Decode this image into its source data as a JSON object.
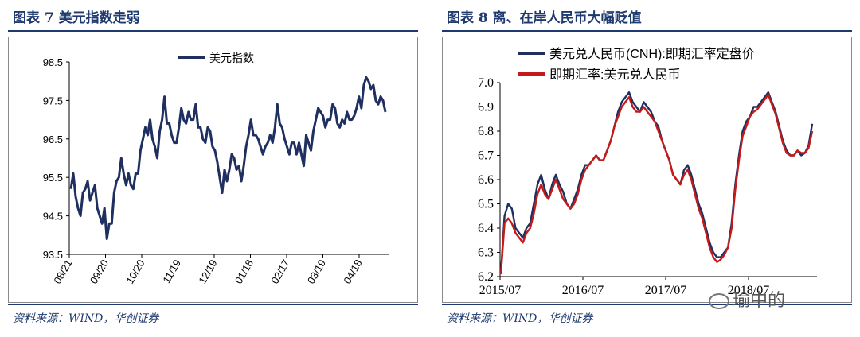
{
  "panels": {
    "left": {
      "figure_title": "图表 7   美元指数走弱",
      "source": "资料来源：WIND，华创证券"
    },
    "right": {
      "figure_title": "图表 8   离、在岸人民币大幅贬值",
      "source": "资料来源：WIND，华创证券"
    }
  },
  "watermark": {
    "text": "瑜中的",
    "icon": "wechat-icon"
  },
  "colors": {
    "title": "#1f3a6e",
    "series_navy": "#1f2f5f",
    "series_red": "#c41a1a"
  },
  "chart_data": [
    {
      "type": "line",
      "title": "",
      "xlabel": "",
      "ylabel": "",
      "ylim": [
        93.5,
        98.5
      ],
      "yticks": [
        "98.5",
        "97.5",
        "96.5",
        "95.5",
        "94.5",
        "93.5"
      ],
      "xticks": [
        "08/21",
        "09/20",
        "10/20",
        "11/19",
        "12/19",
        "01/18",
        "02/17",
        "03/19",
        "04/18"
      ],
      "legend_position": "top-center",
      "grid": false,
      "series": [
        {
          "name": "美元指数",
          "color": "#1f2f5f",
          "values": [
            95.2,
            95.6,
            95.0,
            94.7,
            94.5,
            95.1,
            95.2,
            95.4,
            94.9,
            95.1,
            95.3,
            94.7,
            94.5,
            94.3,
            94.7,
            93.9,
            94.3,
            94.3,
            95.1,
            95.4,
            95.5,
            96.0,
            95.6,
            95.3,
            95.6,
            95.3,
            95.2,
            95.6,
            95.6,
            96.2,
            96.5,
            96.8,
            96.6,
            97.0,
            96.5,
            96.3,
            96.0,
            96.7,
            97.0,
            97.6,
            96.9,
            96.9,
            96.6,
            96.4,
            96.4,
            96.8,
            97.3,
            97.0,
            96.9,
            97.2,
            97.0,
            97.0,
            97.4,
            96.8,
            96.8,
            96.5,
            96.4,
            96.8,
            96.7,
            96.3,
            96.2,
            95.9,
            95.5,
            95.1,
            95.7,
            95.4,
            95.7,
            96.1,
            96.0,
            95.7,
            95.8,
            95.4,
            95.8,
            96.3,
            96.6,
            97.0,
            96.6,
            96.6,
            96.5,
            96.3,
            96.1,
            96.3,
            96.4,
            96.6,
            96.4,
            96.8,
            97.4,
            96.9,
            96.8,
            96.5,
            96.3,
            96.1,
            96.4,
            96.4,
            96.1,
            96.4,
            96.1,
            95.8,
            96.6,
            96.4,
            96.2,
            96.7,
            97.0,
            97.3,
            97.2,
            97.1,
            96.8,
            97.0,
            97.0,
            97.4,
            97.3,
            96.9,
            96.8,
            97.0,
            96.9,
            97.2,
            97.0,
            97.0,
            97.1,
            97.3,
            97.6,
            97.3,
            97.9,
            98.1,
            98.0,
            97.8,
            97.9,
            97.5,
            97.4,
            97.6,
            97.5,
            97.2
          ]
        }
      ]
    },
    {
      "type": "line",
      "title": "",
      "xlabel": "",
      "ylabel": "",
      "ylim": [
        6.2,
        7.0
      ],
      "yticks": [
        "7.0",
        "6.9",
        "6.8",
        "6.7",
        "6.6",
        "6.5",
        "6.4",
        "6.3",
        "6.2"
      ],
      "xticks": [
        "2015/07",
        "2016/07",
        "2017/07",
        "2018/07"
      ],
      "legend_position": "top-left",
      "grid": false,
      "series": [
        {
          "name": "美元兑人民币(CNH):即期汇率定盘价",
          "color": "#1f2f5f",
          "values": [
            6.21,
            6.45,
            6.5,
            6.48,
            6.4,
            6.38,
            6.36,
            6.4,
            6.42,
            6.5,
            6.58,
            6.62,
            6.56,
            6.52,
            6.58,
            6.62,
            6.58,
            6.55,
            6.5,
            6.48,
            6.52,
            6.56,
            6.62,
            6.66,
            6.66,
            6.68,
            6.7,
            6.68,
            6.68,
            6.72,
            6.76,
            6.82,
            6.88,
            6.92,
            6.94,
            6.96,
            6.92,
            6.9,
            6.88,
            6.92,
            6.9,
            6.88,
            6.84,
            6.82,
            6.76,
            6.72,
            6.68,
            6.62,
            6.6,
            6.58,
            6.64,
            6.66,
            6.62,
            6.56,
            6.5,
            6.46,
            6.4,
            6.34,
            6.3,
            6.28,
            6.28,
            6.3,
            6.32,
            6.42,
            6.58,
            6.7,
            6.8,
            6.84,
            6.86,
            6.9,
            6.9,
            6.92,
            6.94,
            6.96,
            6.92,
            6.88,
            6.82,
            6.76,
            6.72,
            6.7,
            6.7,
            6.72,
            6.7,
            6.71,
            6.74,
            6.83
          ]
        },
        {
          "name": "即期汇率:美元兑人民币",
          "color": "#c41a1a",
          "values": [
            6.21,
            6.42,
            6.44,
            6.42,
            6.38,
            6.36,
            6.34,
            6.38,
            6.4,
            6.46,
            6.54,
            6.58,
            6.54,
            6.52,
            6.56,
            6.6,
            6.56,
            6.52,
            6.5,
            6.48,
            6.5,
            6.54,
            6.6,
            6.64,
            6.66,
            6.68,
            6.7,
            6.68,
            6.68,
            6.72,
            6.76,
            6.82,
            6.86,
            6.9,
            6.92,
            6.94,
            6.9,
            6.88,
            6.88,
            6.9,
            6.88,
            6.86,
            6.84,
            6.8,
            6.76,
            6.72,
            6.68,
            6.62,
            6.6,
            6.58,
            6.62,
            6.64,
            6.6,
            6.54,
            6.48,
            6.44,
            6.38,
            6.32,
            6.28,
            6.26,
            6.27,
            6.29,
            6.32,
            6.4,
            6.56,
            6.68,
            6.78,
            6.82,
            6.86,
            6.88,
            6.89,
            6.91,
            6.93,
            6.95,
            6.91,
            6.87,
            6.81,
            6.75,
            6.71,
            6.7,
            6.7,
            6.72,
            6.71,
            6.71,
            6.73,
            6.8
          ]
        }
      ]
    }
  ]
}
